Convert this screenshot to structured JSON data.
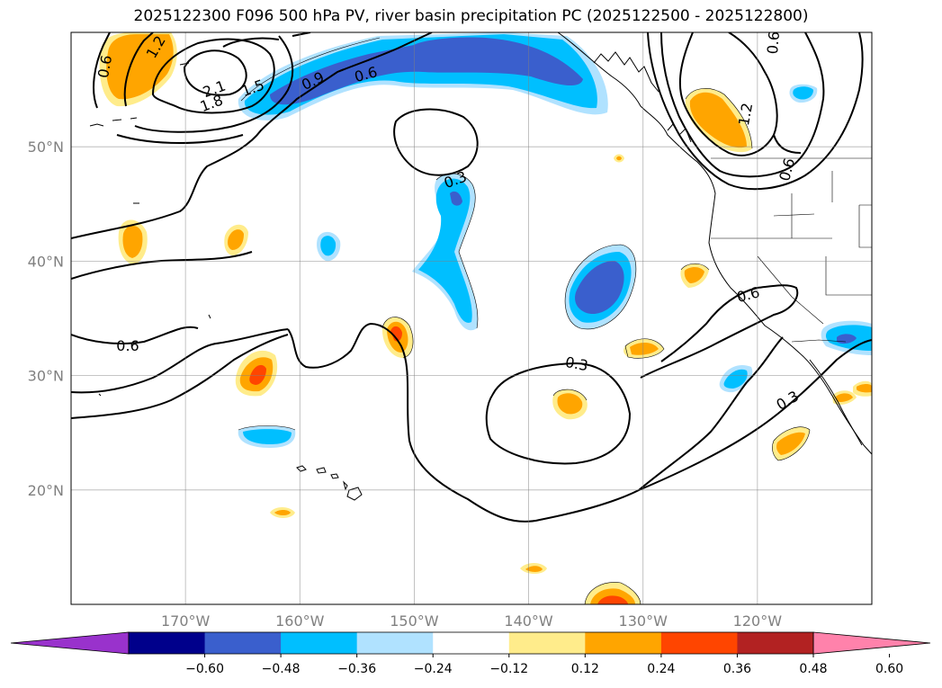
{
  "title": "2025122300 F096 500 hPa PV, river basin precipitation PC (2025122500 - 2025122800)",
  "map": {
    "lon_range": [
      -180,
      -110
    ],
    "lat_range": [
      10,
      60
    ],
    "lon_ticks": [
      {
        "value": -170,
        "label": "170°W"
      },
      {
        "value": -160,
        "label": "160°W"
      },
      {
        "value": -150,
        "label": "150°W"
      },
      {
        "value": -140,
        "label": "140°W"
      },
      {
        "value": -130,
        "label": "130°W"
      },
      {
        "value": -120,
        "label": "120°W"
      }
    ],
    "lat_ticks": [
      {
        "value": 20,
        "label": "20°N"
      },
      {
        "value": 30,
        "label": "30°N"
      },
      {
        "value": 40,
        "label": "40°N"
      },
      {
        "value": 50,
        "label": "50°N"
      }
    ],
    "contour_labels": [
      "0.6",
      "0.3",
      "0.3",
      "0.6",
      "0.3",
      "0.6",
      "0.9",
      "0.6",
      "1.2",
      "0.6",
      "1.5",
      "1.8",
      "2.1",
      "1.2",
      "0.6"
    ]
  },
  "colorbar": {
    "colors": [
      "#9932cc",
      "#00008b",
      "#3a5fcd",
      "#00bfff",
      "#b0e2ff",
      "#ffffff",
      "#ffec8b",
      "#ffa500",
      "#ff4500",
      "#b22222",
      "#ff82ab"
    ],
    "tick_labels": [
      "−0.60",
      "−0.48",
      "−0.36",
      "−0.24",
      "−0.12",
      "0.12",
      "0.24",
      "0.36",
      "0.48",
      "0.60"
    ]
  }
}
